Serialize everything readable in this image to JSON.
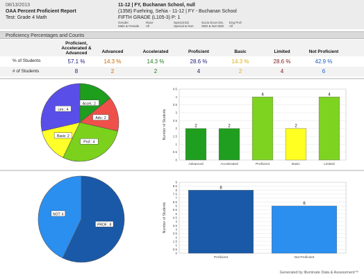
{
  "header": {
    "date": "08/13/2013",
    "report_title": "OAA Percent Proficient Report",
    "test": "Test: Grade 4 Math",
    "school_title": "11-12 | FY, Buchanan School, null",
    "student": "(1358) Fuehring, Sehia  - 11-12 | FY - Buchanan School",
    "grade": "FIFTH GRADE (L105-3) P: 1",
    "filters": [
      {
        "label": "Gender",
        "value": "Male & Female"
      },
      {
        "label": "Race",
        "value": "All"
      },
      {
        "label": "Special Ed.",
        "value": "Special & Non"
      },
      {
        "label": "Socio-Econ Dis.",
        "value": "SED & Not SED"
      },
      {
        "label": "Eng Prof.",
        "value": "All"
      }
    ]
  },
  "section_title": "Proficiency Percentages and Counts",
  "table": {
    "columns": [
      "Proficient, Accelerated & Advanced",
      "Advanced",
      "Accelerated",
      "Proficient",
      "Basic",
      "Limited",
      "Not Proficient"
    ],
    "col_colors": [
      "#1a1a7a",
      "#c76a00",
      "#1e7a1e",
      "#1a1a7a",
      "#e0b000",
      "#7a1a1a",
      "#1a5ec7"
    ],
    "pct_label": "% of Students",
    "count_label": "# of Students",
    "pct": [
      "57.1 %",
      "14.3 %",
      "14.3 %",
      "28.6 %",
      "14.3 %",
      "28.6 %",
      "42.9 %"
    ],
    "count": [
      "8",
      "2",
      "2",
      "4",
      "2",
      "4",
      "6"
    ]
  },
  "chart_data": [
    {
      "type": "pie",
      "slices": [
        {
          "label": "Accel.: 2",
          "value": 2,
          "color": "#1d9e1d"
        },
        {
          "label": "Adv.: 2",
          "value": 2,
          "color": "#f0504a"
        },
        {
          "label": "Prof.: 4",
          "value": 4,
          "color": "#7bd11c"
        },
        {
          "label": "Basic: 2",
          "value": 2,
          "color": "#ffff2a"
        },
        {
          "label": "Lim.: 4",
          "value": 4,
          "color": "#5a4ee8"
        }
      ]
    },
    {
      "type": "bar",
      "categories": [
        "Advanced",
        "Accelerated",
        "Proficient",
        "Basic",
        "Limited"
      ],
      "values": [
        2,
        2,
        4,
        2,
        4
      ],
      "colors": [
        "#1f9e1f",
        "#1f9e1f",
        "#7ed321",
        "#ffff22",
        "#7ed321"
      ],
      "ylabel": "Number of Students",
      "ylim": [
        0,
        4.5
      ],
      "yticks": [
        "0",
        "0.5",
        "1",
        "1.5",
        "2",
        "2.5",
        "3",
        "3.5",
        "4",
        "4.5"
      ]
    },
    {
      "type": "pie",
      "slices": [
        {
          "label": "PROF.: 8",
          "value": 8,
          "color": "#1a59a8"
        },
        {
          "label": "NOT: 6",
          "value": 6,
          "color": "#2b8ff0"
        }
      ]
    },
    {
      "type": "bar",
      "categories": [
        "Proficient",
        "Not Proficient"
      ],
      "values": [
        8,
        6
      ],
      "colors": [
        "#1a59a8",
        "#2b8ff0"
      ],
      "ylabel": "Number of Students",
      "ylim": [
        0,
        9
      ],
      "yticks": [
        "0",
        "0.5",
        "1",
        "1.5",
        "2",
        "2.5",
        "3",
        "3.5",
        "4",
        "4.5",
        "5",
        "5.5",
        "6",
        "6.5",
        "7",
        "7.5",
        "8",
        "8.5",
        "9"
      ]
    }
  ],
  "footer": "Generated by Illuminate Data & Assessment™"
}
